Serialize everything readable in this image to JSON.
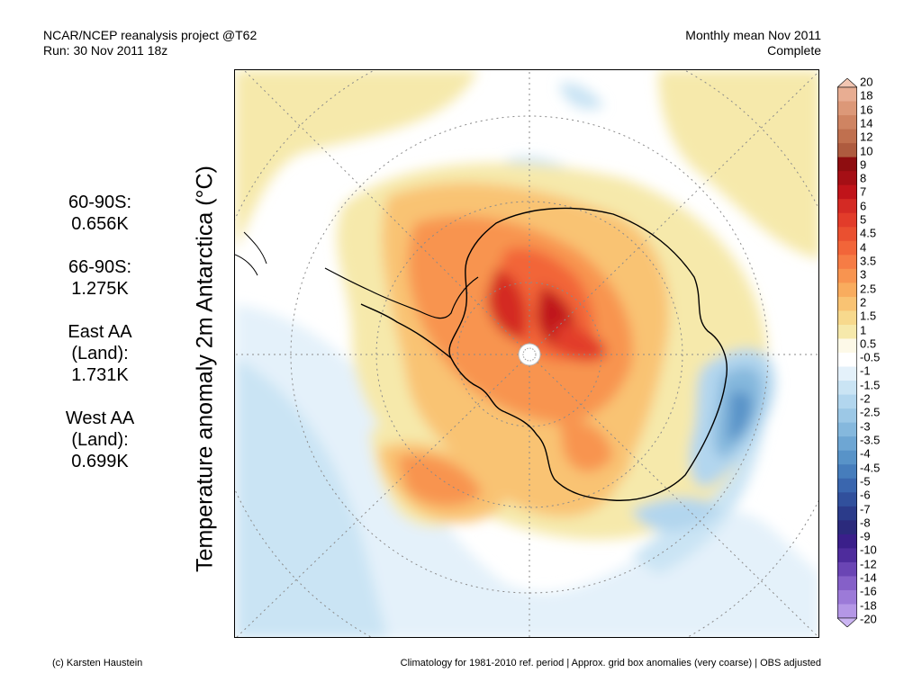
{
  "header": {
    "project": "NCAR/NCEP reanalysis project @T62",
    "run": "Run: 30 Nov 2011 18z",
    "period": "Monthly mean Nov 2011",
    "status": "Complete"
  },
  "y_label": "Temperature anomaly 2m Antarctica (°C)",
  "stats": [
    {
      "label": "60-90S:",
      "value": "0.656K"
    },
    {
      "label": "66-90S:",
      "value": "1.275K"
    },
    {
      "label": "East AA (Land):",
      "value": "1.731K"
    },
    {
      "label": "West AA (Land):",
      "value": "0.699K"
    }
  ],
  "colorbar": {
    "labels": [
      "20",
      "18",
      "16",
      "14",
      "12",
      "10",
      "9",
      "8",
      "7",
      "6",
      "5",
      "4.5",
      "4",
      "3.5",
      "3",
      "2.5",
      "2",
      "1.5",
      "1",
      "0.5",
      "-0.5",
      "-1",
      "-1.5",
      "-2",
      "-2.5",
      "-3",
      "-3.5",
      "-4",
      "-4.5",
      "-5",
      "-6",
      "-7",
      "-8",
      "-9",
      "-10",
      "-12",
      "-14",
      "-16",
      "-18",
      "-20"
    ],
    "colors": [
      "#f2c6b2",
      "#e8ad92",
      "#dc9878",
      "#cf8462",
      "#c0704f",
      "#ae5b3f",
      "#8e0d10",
      "#a50f15",
      "#c0141a",
      "#d42a24",
      "#e23c2a",
      "#ea5030",
      "#f26539",
      "#f67c45",
      "#f89450",
      "#f9ac5e",
      "#f9c373",
      "#f7d98d",
      "#f6e9ab",
      "#fdf9e8",
      "#ffffff",
      "#e4f1fa",
      "#cae4f4",
      "#b2d6ee",
      "#9cc8e6",
      "#85b8dd",
      "#6ea6d3",
      "#5893c8",
      "#467dbc",
      "#3a66ae",
      "#31509c",
      "#2b3b8a",
      "#2b2a7c",
      "#3a1f8a",
      "#4e2c9c",
      "#6a45b4",
      "#8560c8",
      "#9c7ad8",
      "#b497e6",
      "#cbb5f2"
    ]
  },
  "map": {
    "center_marker": "pole-marker-icon"
  },
  "footer": {
    "credit": "(c) Karsten Haustein",
    "note": "Climatology for 1981-2010 ref. period | Approx. grid box anomalies (very coarse) | OBS adjusted"
  }
}
